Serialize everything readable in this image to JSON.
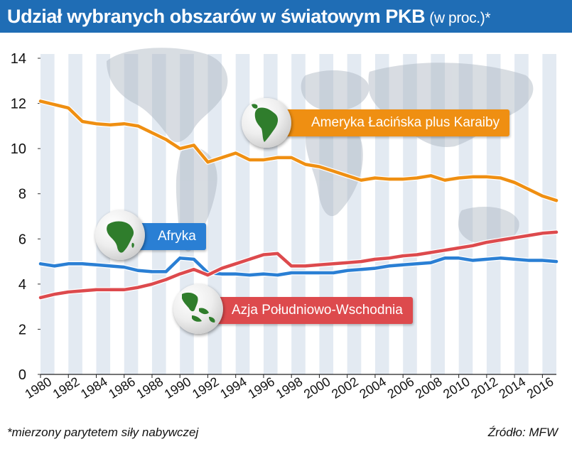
{
  "header": {
    "title": "Udział wybranych obszarów w światowym PKB",
    "title_suffix": "(w proc.)*"
  },
  "chart_data": {
    "type": "line",
    "x": [
      1980,
      1981,
      1982,
      1983,
      1984,
      1985,
      1986,
      1987,
      1988,
      1989,
      1990,
      1991,
      1992,
      1993,
      1994,
      1995,
      1996,
      1997,
      1998,
      1999,
      2000,
      2001,
      2002,
      2003,
      2004,
      2005,
      2006,
      2007,
      2008,
      2009,
      2010,
      2011,
      2012,
      2013,
      2014,
      2015,
      2016,
      2017
    ],
    "xticks": [
      "1980",
      "1982",
      "1984",
      "1986",
      "1988",
      "1990",
      "1992",
      "1994",
      "1996",
      "1998",
      "2000",
      "2002",
      "2004",
      "2006",
      "2008",
      "2010",
      "2012",
      "2014",
      "2016"
    ],
    "xlim": [
      1980,
      2017
    ],
    "ylim": [
      0,
      14
    ],
    "yticks": [
      "0",
      "2",
      "4",
      "6",
      "8",
      "10",
      "12",
      "14"
    ],
    "grid": "alternating vertical bands",
    "series": [
      {
        "name": "Ameryka Łacińska plus Karaiby",
        "color": "#ef8f12",
        "values": [
          12.1,
          11.95,
          11.8,
          11.2,
          11.1,
          11.05,
          11.1,
          11.0,
          10.7,
          10.4,
          10.0,
          10.15,
          9.4,
          9.6,
          9.8,
          9.5,
          9.5,
          9.6,
          9.6,
          9.3,
          9.2,
          9.0,
          8.8,
          8.6,
          8.7,
          8.65,
          8.65,
          8.7,
          8.8,
          8.6,
          8.7,
          8.75,
          8.75,
          8.7,
          8.5,
          8.2,
          7.9,
          7.7
        ]
      },
      {
        "name": "Afryka",
        "color": "#2a7fd4",
        "values": [
          4.9,
          4.8,
          4.9,
          4.9,
          4.85,
          4.8,
          4.75,
          4.6,
          4.55,
          4.55,
          5.15,
          5.1,
          4.5,
          4.45,
          4.45,
          4.4,
          4.45,
          4.4,
          4.5,
          4.5,
          4.5,
          4.5,
          4.6,
          4.65,
          4.7,
          4.8,
          4.85,
          4.9,
          4.95,
          5.15,
          5.15,
          5.05,
          5.1,
          5.15,
          5.1,
          5.05,
          5.05,
          5.0
        ]
      },
      {
        "name": "Azja Południowo-Wschodnia",
        "color": "#dd4a4d",
        "values": [
          3.4,
          3.55,
          3.65,
          3.7,
          3.75,
          3.75,
          3.75,
          3.85,
          4.0,
          4.2,
          4.45,
          4.65,
          4.4,
          4.7,
          4.9,
          5.1,
          5.3,
          5.35,
          4.8,
          4.8,
          4.85,
          4.9,
          4.95,
          5.0,
          5.1,
          5.15,
          5.25,
          5.3,
          5.4,
          5.5,
          5.6,
          5.7,
          5.85,
          5.95,
          6.05,
          6.15,
          6.25,
          6.3
        ]
      }
    ]
  },
  "globes": {
    "latam": "south-america-globe-icon",
    "africa": "africa-globe-icon",
    "asia": "southeast-asia-globe-icon"
  },
  "footnote": "*mierzony parytetem siły nabywczej",
  "source": "Źródło:  MFW"
}
